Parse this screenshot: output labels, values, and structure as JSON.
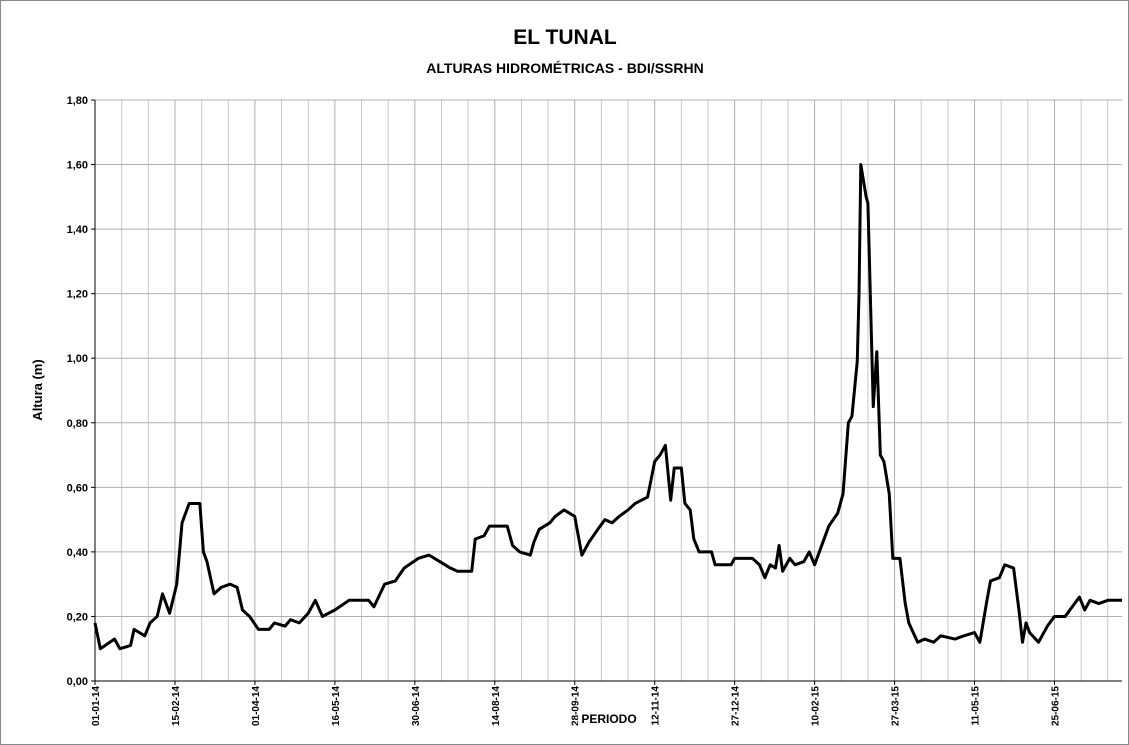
{
  "chart_data": {
    "type": "line",
    "title": "EL TUNAL",
    "subtitle": "ALTURAS HIDROMÉTRICAS  - BDI/SSRHN",
    "y_label": "Altura (m)",
    "x_label": "PERIODO",
    "xlim": [
      "01-01-14",
      "02-08-15"
    ],
    "xticks": [
      "01-01-14",
      "15-02-14",
      "01-04-14",
      "16-05-14",
      "30-06-14",
      "14-08-14",
      "28-09-14",
      "12-11-14",
      "27-12-14",
      "10-02-15",
      "27-03-15",
      "11-05-15",
      "25-06-15"
    ],
    "x_minor_ticks": [
      "16-01-14",
      "31-01-14",
      "02-03-14",
      "17-03-14",
      "16-04-14",
      "01-05-14",
      "31-05-14",
      "15-06-14",
      "15-07-14",
      "30-07-14",
      "29-08-14",
      "13-09-14",
      "13-10-14",
      "28-10-14",
      "27-11-14",
      "12-12-14",
      "11-01-15",
      "26-01-15",
      "25-02-15",
      "12-03-15",
      "11-04-15",
      "26-04-15",
      "26-05-15",
      "10-06-15",
      "10-07-15",
      "25-07-15"
    ],
    "ylim": [
      0,
      1.8
    ],
    "yticks": [
      {
        "value": 0,
        "label": "0,00"
      },
      {
        "value": 0.2,
        "label": "0,20"
      },
      {
        "value": 0.4,
        "label": "0,40"
      },
      {
        "value": 0.6,
        "label": "0,60"
      },
      {
        "value": 0.8,
        "label": "0,80"
      },
      {
        "value": 1.0,
        "label": "1,00"
      },
      {
        "value": 1.2,
        "label": "1,20"
      },
      {
        "value": 1.4,
        "label": "1,40"
      },
      {
        "value": 1.6,
        "label": "1,60"
      },
      {
        "value": 1.8,
        "label": "1,80"
      }
    ],
    "grid": true,
    "x": [
      "01-01-14",
      "04-01-14",
      "12-01-14",
      "15-01-14",
      "21-01-14",
      "23-01-14",
      "29-01-14",
      "01-02-14",
      "05-02-14",
      "08-02-14",
      "12-02-14",
      "16-02-14",
      "19-02-14",
      "23-02-14",
      "01-03-14",
      "03-03-14",
      "05-03-14",
      "09-03-14",
      "13-03-14",
      "18-03-14",
      "22-03-14",
      "25-03-14",
      "29-03-14",
      "03-04-14",
      "09-04-14",
      "12-04-14",
      "18-04-14",
      "21-04-14",
      "26-04-14",
      "01-05-14",
      "05-05-14",
      "09-05-14",
      "16-05-14",
      "24-05-14",
      "04-06-14",
      "07-06-14",
      "13-06-14",
      "19-06-14",
      "24-06-14",
      "02-07-14",
      "08-07-14",
      "14-07-14",
      "20-07-14",
      "24-07-14",
      "01-08-14",
      "03-08-14",
      "08-08-14",
      "11-08-14",
      "21-08-14",
      "24-08-14",
      "28-08-14",
      "03-09-14",
      "05-09-14",
      "08-09-14",
      "14-09-14",
      "17-09-14",
      "22-09-14",
      "28-09-14",
      "02-10-14",
      "06-10-14",
      "11-10-14",
      "15-10-14",
      "19-10-14",
      "23-10-14",
      "28-10-14",
      "01-11-14",
      "08-11-14",
      "12-11-14",
      "15-11-14",
      "18-11-14",
      "21-11-14",
      "23-11-14",
      "27-11-14",
      "29-11-14",
      "02-12-14",
      "04-12-14",
      "07-12-14",
      "14-12-14",
      "16-12-14",
      "25-12-14",
      "27-12-14",
      "06-01-15",
      "10-01-15",
      "13-01-15",
      "16-01-15",
      "19-01-15",
      "21-01-15",
      "23-01-15",
      "27-01-15",
      "30-01-15",
      "04-02-15",
      "07-02-15",
      "10-02-15",
      "14-02-15",
      "18-02-15",
      "23-02-15",
      "26-02-15",
      "01-03-15",
      "03-03-15",
      "06-03-15",
      "07-03-15",
      "08-03-15",
      "11-03-15",
      "12-03-15",
      "15-03-15",
      "17-03-15",
      "19-03-15",
      "21-03-15",
      "24-03-15",
      "26-03-15",
      "30-03-15",
      "02-04-15",
      "04-04-15",
      "09-04-15",
      "13-04-15",
      "18-04-15",
      "22-04-15",
      "30-04-15",
      "05-05-15",
      "11-05-15",
      "14-05-15",
      "18-05-15",
      "20-05-15",
      "25-05-15",
      "28-05-15",
      "02-06-15",
      "05-06-15",
      "07-06-15",
      "09-06-15",
      "11-06-15",
      "16-06-15",
      "21-06-15",
      "25-06-15",
      "01-07-15",
      "05-07-15",
      "09-07-15",
      "12-07-15",
      "15-07-15",
      "20-07-15",
      "25-07-15",
      "02-08-15"
    ],
    "series": [
      {
        "name": "Altura",
        "color": "#000000",
        "values": [
          0.18,
          0.1,
          0.13,
          0.1,
          0.11,
          0.16,
          0.14,
          0.18,
          0.2,
          0.27,
          0.21,
          0.3,
          0.49,
          0.55,
          0.55,
          0.4,
          0.37,
          0.27,
          0.29,
          0.3,
          0.29,
          0.22,
          0.2,
          0.16,
          0.16,
          0.18,
          0.17,
          0.19,
          0.18,
          0.21,
          0.25,
          0.2,
          0.22,
          0.25,
          0.25,
          0.23,
          0.3,
          0.31,
          0.35,
          0.38,
          0.39,
          0.37,
          0.35,
          0.34,
          0.34,
          0.44,
          0.45,
          0.48,
          0.48,
          0.42,
          0.4,
          0.39,
          0.43,
          0.47,
          0.49,
          0.51,
          0.53,
          0.51,
          0.39,
          0.43,
          0.47,
          0.5,
          0.49,
          0.51,
          0.53,
          0.55,
          0.57,
          0.68,
          0.7,
          0.73,
          0.56,
          0.66,
          0.66,
          0.55,
          0.53,
          0.44,
          0.4,
          0.4,
          0.36,
          0.36,
          0.38,
          0.38,
          0.36,
          0.32,
          0.36,
          0.35,
          0.42,
          0.34,
          0.38,
          0.36,
          0.37,
          0.4,
          0.36,
          0.42,
          0.48,
          0.52,
          0.58,
          0.8,
          0.82,
          0.99,
          1.2,
          1.6,
          1.5,
          1.48,
          0.85,
          1.02,
          0.7,
          0.68,
          0.58,
          0.38,
          0.38,
          0.24,
          0.18,
          0.12,
          0.13,
          0.12,
          0.14,
          0.13,
          0.14,
          0.15,
          0.12,
          0.25,
          0.31,
          0.32,
          0.36,
          0.35,
          0.22,
          0.12,
          0.18,
          0.15,
          0.12,
          0.17,
          0.2,
          0.2,
          0.23,
          0.26,
          0.22,
          0.25,
          0.24,
          0.25,
          0.25
        ]
      }
    ]
  }
}
